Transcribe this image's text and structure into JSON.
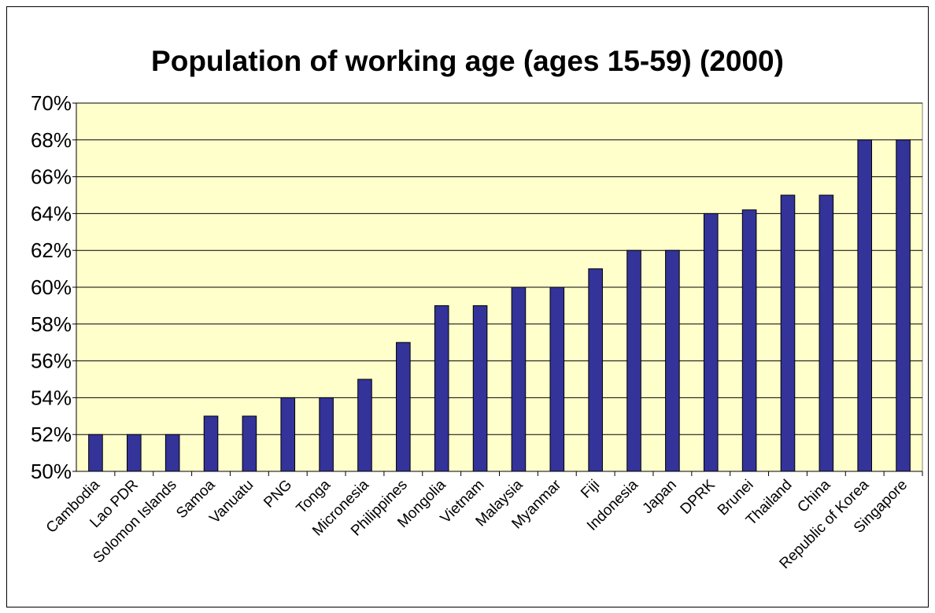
{
  "chart_data": {
    "type": "bar",
    "title": "Population of working age (ages 15-59) (2000)",
    "xlabel": "",
    "ylabel": "",
    "categories": [
      "Cambodia",
      "Lao PDR",
      "Solomon Islands",
      "Samoa",
      "Vanuatu",
      "PNG",
      "Tonga",
      "Micronesia",
      "Philippines",
      "Mongolia",
      "Vietnam",
      "Malaysia",
      "Myanmar",
      "Fiji",
      "Indonesia",
      "Japan",
      "DPRK",
      "Brunei",
      "Thailand",
      "China",
      "Republic of Korea",
      "Singapore"
    ],
    "values": [
      52,
      52,
      52,
      53,
      53,
      54,
      54,
      55,
      57,
      59,
      59,
      60,
      60,
      61,
      62,
      62,
      64,
      64.2,
      65,
      65,
      68,
      68
    ],
    "ylim": [
      50,
      70
    ],
    "yticks": [
      50,
      52,
      54,
      56,
      58,
      60,
      62,
      64,
      66,
      68,
      70
    ],
    "ytick_labels": [
      "50%",
      "52%",
      "54%",
      "56%",
      "58%",
      "60%",
      "62%",
      "64%",
      "66%",
      "68%",
      "70%"
    ],
    "grid": true,
    "legend": "none",
    "colors": {
      "bar_fill": "#333399",
      "bar_stroke": "#000000",
      "plot_background": "#ffffcc",
      "gridline": "#000000"
    }
  }
}
